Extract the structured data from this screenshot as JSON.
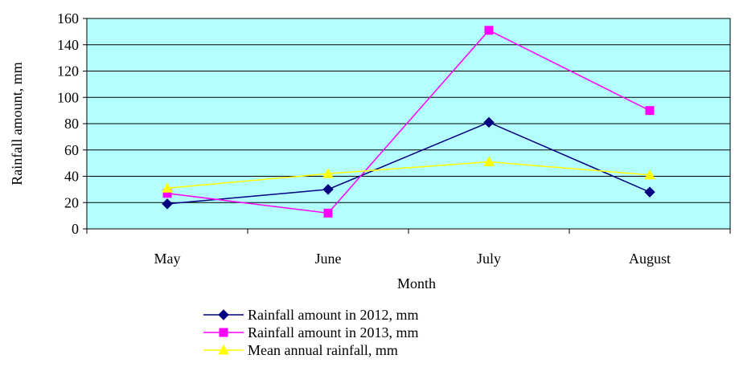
{
  "chart_data": {
    "type": "line",
    "title": "",
    "xlabel": "Month",
    "ylabel": "Rainfall amount, mm",
    "categories": [
      "May",
      "June",
      "July",
      "August"
    ],
    "ylim": [
      0,
      160
    ],
    "yticks": [
      0,
      20,
      40,
      60,
      80,
      100,
      120,
      140,
      160
    ],
    "grid": true,
    "plot_background": "#b3ffff",
    "legend_position": "bottom",
    "series": [
      {
        "name": "Rainfall amount in 2012, mm",
        "values": [
          19,
          30,
          81,
          28
        ],
        "color": "#000080",
        "marker": "diamond"
      },
      {
        "name": "Rainfall amount in 2013, mm",
        "values": [
          27,
          12,
          151,
          90
        ],
        "color": "#ff00ff",
        "marker": "square"
      },
      {
        "name": "Mean annual rainfall, mm",
        "values": [
          31,
          42,
          51,
          41
        ],
        "color": "#ffff00",
        "marker": "triangle"
      }
    ]
  }
}
